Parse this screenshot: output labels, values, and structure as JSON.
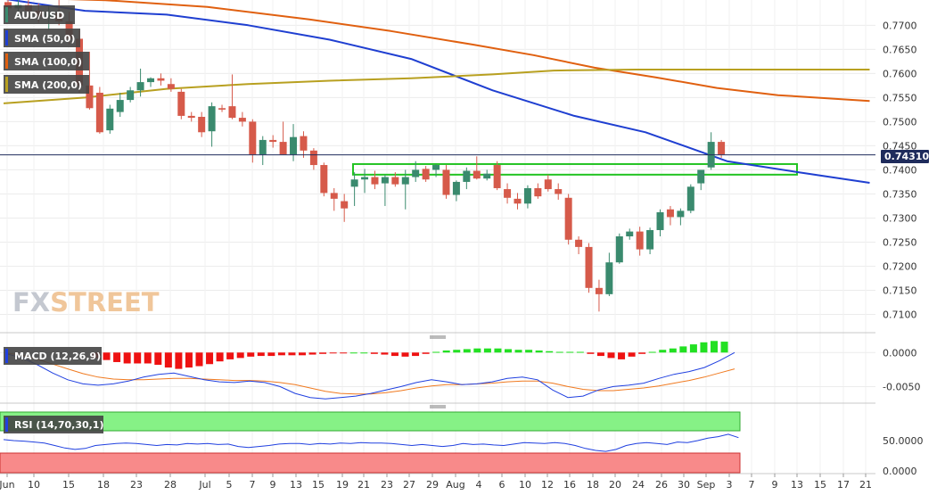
{
  "chart_data": {
    "type": "candlestick",
    "symbol": "AUD/USD",
    "price_axis": {
      "ticks": [
        "0.7700",
        "0.7650",
        "0.7600",
        "0.7550",
        "0.7500",
        "0.7450",
        "0.7400",
        "0.7350",
        "0.7300",
        "0.7250",
        "0.7200",
        "0.7150",
        "0.7100"
      ],
      "range": [
        0.7064,
        0.7745
      ]
    },
    "x_ticks": [
      "Jun",
      "10",
      "15",
      "18",
      "23",
      "28",
      "Jul",
      "5",
      "7",
      "9",
      "13",
      "15",
      "19",
      "21",
      "23",
      "27",
      "29",
      "Aug",
      "4",
      "6",
      "10",
      "12",
      "16",
      "18",
      "20",
      "24",
      "26",
      "30",
      "Sep",
      "3",
      "7",
      "9",
      "13",
      "15",
      "17",
      "21"
    ],
    "current_price": "0.743105",
    "current_price_value": 0.74311,
    "candles": [
      {
        "o": 0.7748,
        "h": 0.7765,
        "l": 0.772,
        "c": 0.7735
      },
      {
        "o": 0.7735,
        "h": 0.7752,
        "l": 0.7715,
        "c": 0.7742
      },
      {
        "o": 0.7742,
        "h": 0.776,
        "l": 0.7725,
        "c": 0.773
      },
      {
        "o": 0.773,
        "h": 0.7745,
        "l": 0.7705,
        "c": 0.7718
      },
      {
        "o": 0.7718,
        "h": 0.774,
        "l": 0.769,
        "c": 0.7726
      },
      {
        "o": 0.7726,
        "h": 0.7755,
        "l": 0.77,
        "c": 0.7708
      },
      {
        "o": 0.7708,
        "h": 0.7728,
        "l": 0.766,
        "c": 0.7672
      },
      {
        "o": 0.7672,
        "h": 0.769,
        "l": 0.756,
        "c": 0.7575
      },
      {
        "o": 0.7575,
        "h": 0.7645,
        "l": 0.7525,
        "c": 0.7528
      },
      {
        "o": 0.756,
        "h": 0.7572,
        "l": 0.7475,
        "c": 0.7478
      },
      {
        "o": 0.7482,
        "h": 0.7535,
        "l": 0.7475,
        "c": 0.7527
      },
      {
        "o": 0.752,
        "h": 0.756,
        "l": 0.751,
        "c": 0.7545
      },
      {
        "o": 0.7545,
        "h": 0.7572,
        "l": 0.754,
        "c": 0.7565
      },
      {
        "o": 0.7565,
        "h": 0.761,
        "l": 0.7552,
        "c": 0.7582
      },
      {
        "o": 0.7582,
        "h": 0.7592,
        "l": 0.7572,
        "c": 0.759
      },
      {
        "o": 0.759,
        "h": 0.76,
        "l": 0.7575,
        "c": 0.7585
      },
      {
        "o": 0.7578,
        "h": 0.759,
        "l": 0.7562,
        "c": 0.7568
      },
      {
        "o": 0.7562,
        "h": 0.7568,
        "l": 0.7505,
        "c": 0.7512
      },
      {
        "o": 0.7512,
        "h": 0.752,
        "l": 0.75,
        "c": 0.7508
      },
      {
        "o": 0.751,
        "h": 0.752,
        "l": 0.7468,
        "c": 0.7478
      },
      {
        "o": 0.748,
        "h": 0.754,
        "l": 0.7448,
        "c": 0.7532
      },
      {
        "o": 0.7528,
        "h": 0.7535,
        "l": 0.752,
        "c": 0.7525
      },
      {
        "o": 0.7532,
        "h": 0.7598,
        "l": 0.7505,
        "c": 0.7508
      },
      {
        "o": 0.7508,
        "h": 0.752,
        "l": 0.749,
        "c": 0.75
      },
      {
        "o": 0.75,
        "h": 0.7505,
        "l": 0.7415,
        "c": 0.7432
      },
      {
        "o": 0.7432,
        "h": 0.747,
        "l": 0.741,
        "c": 0.7462
      },
      {
        "o": 0.7462,
        "h": 0.7472,
        "l": 0.7446,
        "c": 0.7458
      },
      {
        "o": 0.7458,
        "h": 0.75,
        "l": 0.7432,
        "c": 0.7432
      },
      {
        "o": 0.7432,
        "h": 0.7495,
        "l": 0.7418,
        "c": 0.7468
      },
      {
        "o": 0.747,
        "h": 0.748,
        "l": 0.7425,
        "c": 0.744
      },
      {
        "o": 0.744,
        "h": 0.7445,
        "l": 0.74,
        "c": 0.741
      },
      {
        "o": 0.741,
        "h": 0.7415,
        "l": 0.7345,
        "c": 0.7352
      },
      {
        "o": 0.7352,
        "h": 0.7362,
        "l": 0.7315,
        "c": 0.734
      },
      {
        "o": 0.7335,
        "h": 0.735,
        "l": 0.7292,
        "c": 0.732
      },
      {
        "o": 0.7365,
        "h": 0.7395,
        "l": 0.7325,
        "c": 0.738
      },
      {
        "o": 0.738,
        "h": 0.7402,
        "l": 0.7352,
        "c": 0.7385
      },
      {
        "o": 0.7385,
        "h": 0.7398,
        "l": 0.736,
        "c": 0.737
      },
      {
        "o": 0.7372,
        "h": 0.739,
        "l": 0.7325,
        "c": 0.7385
      },
      {
        "o": 0.7385,
        "h": 0.7395,
        "l": 0.7365,
        "c": 0.737
      },
      {
        "o": 0.737,
        "h": 0.74,
        "l": 0.7318,
        "c": 0.7385
      },
      {
        "o": 0.7385,
        "h": 0.7418,
        "l": 0.7375,
        "c": 0.74
      },
      {
        "o": 0.7402,
        "h": 0.7408,
        "l": 0.7375,
        "c": 0.738
      },
      {
        "o": 0.74,
        "h": 0.7412,
        "l": 0.7385,
        "c": 0.741
      },
      {
        "o": 0.74,
        "h": 0.741,
        "l": 0.734,
        "c": 0.7348
      },
      {
        "o": 0.7348,
        "h": 0.7378,
        "l": 0.7335,
        "c": 0.7375
      },
      {
        "o": 0.7375,
        "h": 0.7405,
        "l": 0.736,
        "c": 0.7398
      },
      {
        "o": 0.7398,
        "h": 0.7428,
        "l": 0.738,
        "c": 0.7382
      },
      {
        "o": 0.7382,
        "h": 0.74,
        "l": 0.7378,
        "c": 0.7392
      },
      {
        "o": 0.741,
        "h": 0.7418,
        "l": 0.7358,
        "c": 0.7362
      },
      {
        "o": 0.736,
        "h": 0.7372,
        "l": 0.733,
        "c": 0.7342
      },
      {
        "o": 0.734,
        "h": 0.7352,
        "l": 0.7318,
        "c": 0.733
      },
      {
        "o": 0.733,
        "h": 0.7368,
        "l": 0.732,
        "c": 0.7362
      },
      {
        "o": 0.7362,
        "h": 0.7372,
        "l": 0.734,
        "c": 0.7345
      },
      {
        "o": 0.738,
        "h": 0.739,
        "l": 0.7355,
        "c": 0.736
      },
      {
        "o": 0.736,
        "h": 0.7372,
        "l": 0.7338,
        "c": 0.735
      },
      {
        "o": 0.7342,
        "h": 0.735,
        "l": 0.7245,
        "c": 0.7255
      },
      {
        "o": 0.7255,
        "h": 0.7262,
        "l": 0.7225,
        "c": 0.724
      },
      {
        "o": 0.724,
        "h": 0.7248,
        "l": 0.7145,
        "c": 0.7155
      },
      {
        "o": 0.7155,
        "h": 0.7172,
        "l": 0.7106,
        "c": 0.7142
      },
      {
        "o": 0.7142,
        "h": 0.7228,
        "l": 0.7138,
        "c": 0.7208
      },
      {
        "o": 0.7208,
        "h": 0.7268,
        "l": 0.7205,
        "c": 0.7262
      },
      {
        "o": 0.7262,
        "h": 0.7278,
        "l": 0.7255,
        "c": 0.7272
      },
      {
        "o": 0.7272,
        "h": 0.7282,
        "l": 0.7222,
        "c": 0.7235
      },
      {
        "o": 0.7235,
        "h": 0.728,
        "l": 0.7225,
        "c": 0.7275
      },
      {
        "o": 0.7275,
        "h": 0.7318,
        "l": 0.7262,
        "c": 0.7312
      },
      {
        "o": 0.7318,
        "h": 0.7325,
        "l": 0.7285,
        "c": 0.7302
      },
      {
        "o": 0.7302,
        "h": 0.732,
        "l": 0.7285,
        "c": 0.7315
      },
      {
        "o": 0.7315,
        "h": 0.737,
        "l": 0.731,
        "c": 0.7365
      },
      {
        "o": 0.7372,
        "h": 0.7398,
        "l": 0.7358,
        "c": 0.74
      },
      {
        "o": 0.7405,
        "h": 0.7478,
        "l": 0.74,
        "c": 0.7458
      },
      {
        "o": 0.7458,
        "h": 0.7462,
        "l": 0.7425,
        "c": 0.7432
      }
    ],
    "sma": [
      {
        "name": "SMA (50,0)",
        "color": "#1f3fd1",
        "points": [
          [
            0,
            0.7755
          ],
          [
            8,
            0.773
          ],
          [
            16,
            0.7722
          ],
          [
            24,
            0.77
          ],
          [
            32,
            0.767
          ],
          [
            40,
            0.763
          ],
          [
            48,
            0.7565
          ],
          [
            56,
            0.7512
          ],
          [
            63,
            0.7478
          ],
          [
            71,
            0.7418
          ],
          [
            78,
            0.7395
          ],
          [
            85,
            0.7373
          ]
        ]
      },
      {
        "name": "SMA (100,0)",
        "color": "#e06010",
        "points": [
          [
            0,
            0.7758
          ],
          [
            10,
            0.7752
          ],
          [
            20,
            0.7738
          ],
          [
            30,
            0.7712
          ],
          [
            38,
            0.7688
          ],
          [
            46,
            0.766
          ],
          [
            52,
            0.7638
          ],
          [
            58,
            0.7612
          ],
          [
            64,
            0.7592
          ],
          [
            70,
            0.757
          ],
          [
            76,
            0.7555
          ],
          [
            85,
            0.7543
          ]
        ]
      },
      {
        "name": "SMA (200,0)",
        "color": "#b8a020",
        "points": [
          [
            0,
            0.7538
          ],
          [
            8,
            0.755
          ],
          [
            16,
            0.7568
          ],
          [
            24,
            0.7578
          ],
          [
            32,
            0.7585
          ],
          [
            40,
            0.759
          ],
          [
            48,
            0.7598
          ],
          [
            54,
            0.7606
          ],
          [
            62,
            0.7608
          ],
          [
            85,
            0.7608
          ]
        ]
      }
    ],
    "zone": {
      "low": 0.739,
      "high": 0.7412
    },
    "macd": {
      "name": "MACD (12,26,9)",
      "ticks": [
        "0.0000",
        "-0.0050"
      ],
      "range": [
        -0.0073,
        0.002
      ],
      "hist": [
        -0.0008,
        -0.0011,
        -0.0014,
        -0.0016,
        -0.0016,
        -0.0016,
        -0.0018,
        -0.0022,
        -0.0024,
        -0.0022,
        -0.002,
        -0.0017,
        -0.0013,
        -0.001,
        -0.0008,
        -0.0006,
        -0.0005,
        -0.0005,
        -0.0004,
        -0.0004,
        -0.0004,
        -0.0003,
        -0.0002,
        -0.0001,
        -0.0001,
        0,
        0,
        -0.0002,
        -0.0003,
        -0.0005,
        -0.0006,
        -0.0005,
        -0.0002,
        0.0001,
        0.0003,
        0.0004,
        0.0005,
        0.0006,
        0.0006,
        0.0006,
        0.0005,
        0.0004,
        0.0004,
        0.0003,
        0.0002,
        0.0001,
        0.0001,
        0.0001,
        -0.0002,
        -0.0005,
        -0.0008,
        -0.001,
        -0.0006,
        -0.0002,
        0.0001,
        0.0004,
        0.0006,
        0.0009,
        0.0012,
        0.0015,
        0.0017,
        0.0016
      ],
      "macd_line": [
        -0.0002,
        -0.0008,
        -0.0018,
        -0.003,
        -0.004,
        -0.0046,
        -0.0048,
        -0.0046,
        -0.0042,
        -0.0036,
        -0.0032,
        -0.003,
        -0.0035,
        -0.004,
        -0.0043,
        -0.0044,
        -0.0042,
        -0.0044,
        -0.005,
        -0.006,
        -0.0066,
        -0.0068,
        -0.0066,
        -0.0064,
        -0.006,
        -0.0055,
        -0.005,
        -0.0044,
        -0.004,
        -0.0043,
        -0.0047,
        -0.0046,
        -0.0043,
        -0.0038,
        -0.0036,
        -0.004,
        -0.0055,
        -0.0066,
        -0.0064,
        -0.0055,
        -0.005,
        -0.0048,
        -0.0045,
        -0.0038,
        -0.0032,
        -0.0028,
        -0.0022,
        -0.0012,
        0.0
      ],
      "signal_line": [
        -0.0001,
        -0.0004,
        -0.001,
        -0.0017,
        -0.0024,
        -0.0031,
        -0.0036,
        -0.0039,
        -0.004,
        -0.004,
        -0.0039,
        -0.0038,
        -0.0038,
        -0.0039,
        -0.004,
        -0.0041,
        -0.0041,
        -0.0042,
        -0.0044,
        -0.0047,
        -0.0052,
        -0.0057,
        -0.006,
        -0.0061,
        -0.0061,
        -0.0059,
        -0.0056,
        -0.0052,
        -0.0049,
        -0.0047,
        -0.0047,
        -0.0046,
        -0.0045,
        -0.0043,
        -0.0042,
        -0.0042,
        -0.0045,
        -0.005,
        -0.0054,
        -0.0056,
        -0.0056,
        -0.0054,
        -0.0052,
        -0.0049,
        -0.0045,
        -0.0041,
        -0.0036,
        -0.003,
        -0.0024
      ]
    },
    "rsi": {
      "name": "RSI (14,70,30,1)",
      "ticks": [
        "50.0000",
        "0.0000"
      ],
      "range": [
        0,
        100
      ],
      "overbought": 70,
      "oversold": 30,
      "values": [
        52,
        50,
        49,
        47,
        45,
        40,
        35,
        32,
        34,
        40,
        42,
        44,
        45,
        44,
        42,
        40,
        42,
        41,
        44,
        43,
        44,
        42,
        43,
        38,
        36,
        38,
        40,
        43,
        44,
        44,
        42,
        44,
        43,
        45,
        44,
        46,
        45,
        45,
        44,
        42,
        40,
        42,
        40,
        38,
        40,
        44,
        42,
        43,
        41,
        40,
        43,
        46,
        45,
        44,
        46,
        44,
        40,
        34,
        30,
        28,
        32,
        40,
        44,
        46,
        44,
        42,
        47,
        46,
        50,
        55,
        58,
        63,
        56
      ]
    },
    "legends": [
      "AUD/USD",
      "SMA (50,0)",
      "SMA (100,0)",
      "SMA (200,0)"
    ],
    "watermark": {
      "part1": "FX",
      "part2": "STREET"
    }
  }
}
